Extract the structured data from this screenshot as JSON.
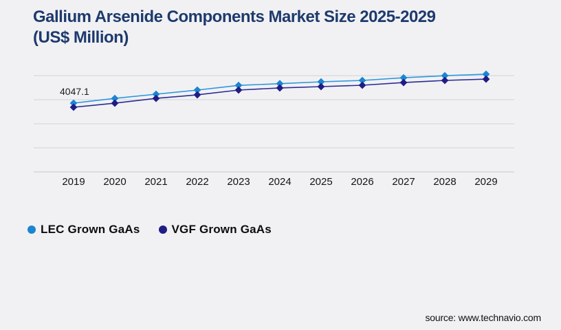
{
  "page": {
    "background_color": "#f1f1f4",
    "title": "Gallium Arsenide Components Market Size 2025-2029 (US$ Million)",
    "title_lines": [
      "Gallium Arsenide Components Market Size 2025-2029",
      "(US$ Million)"
    ],
    "title_color": "#1e3a6d",
    "source_text": "source: www.technavio.com"
  },
  "chart_data": {
    "type": "line",
    "title": "Gallium Arsenide Components Market Size 2025-2029 (US$ Million)",
    "categories": [
      "2019",
      "2020",
      "2021",
      "2022",
      "2023",
      "2024",
      "2025",
      "2026",
      "2027",
      "2028",
      "2029"
    ],
    "series": [
      {
        "name": "LEC Grown GaAs",
        "marker": "diamond",
        "color": "#1b85d1",
        "line_color": "#2d97dc",
        "values": [
          4047.1,
          4240,
          4410,
          4580,
          4770,
          4840,
          4915,
          4970,
          5080,
          5165,
          5225
        ]
      },
      {
        "name": "VGF Grown GaAs",
        "marker": "diamond",
        "color": "#1f1d85",
        "line_color": "#2b2a94",
        "values": [
          3880,
          4045,
          4240,
          4385,
          4580,
          4665,
          4720,
          4775,
          4885,
          4970,
          5025
        ]
      }
    ],
    "data_labels": [
      {
        "series": "LEC Grown GaAs",
        "category": "2019",
        "text": "4047.1"
      }
    ],
    "xlabel": "",
    "ylabel": "",
    "ylim": [
      1247,
      5447
    ],
    "grid": "horizontal",
    "gridline_color": "#d4d4d9",
    "axis_color": "#c6c6cc",
    "legend_position": "bottom-left"
  }
}
